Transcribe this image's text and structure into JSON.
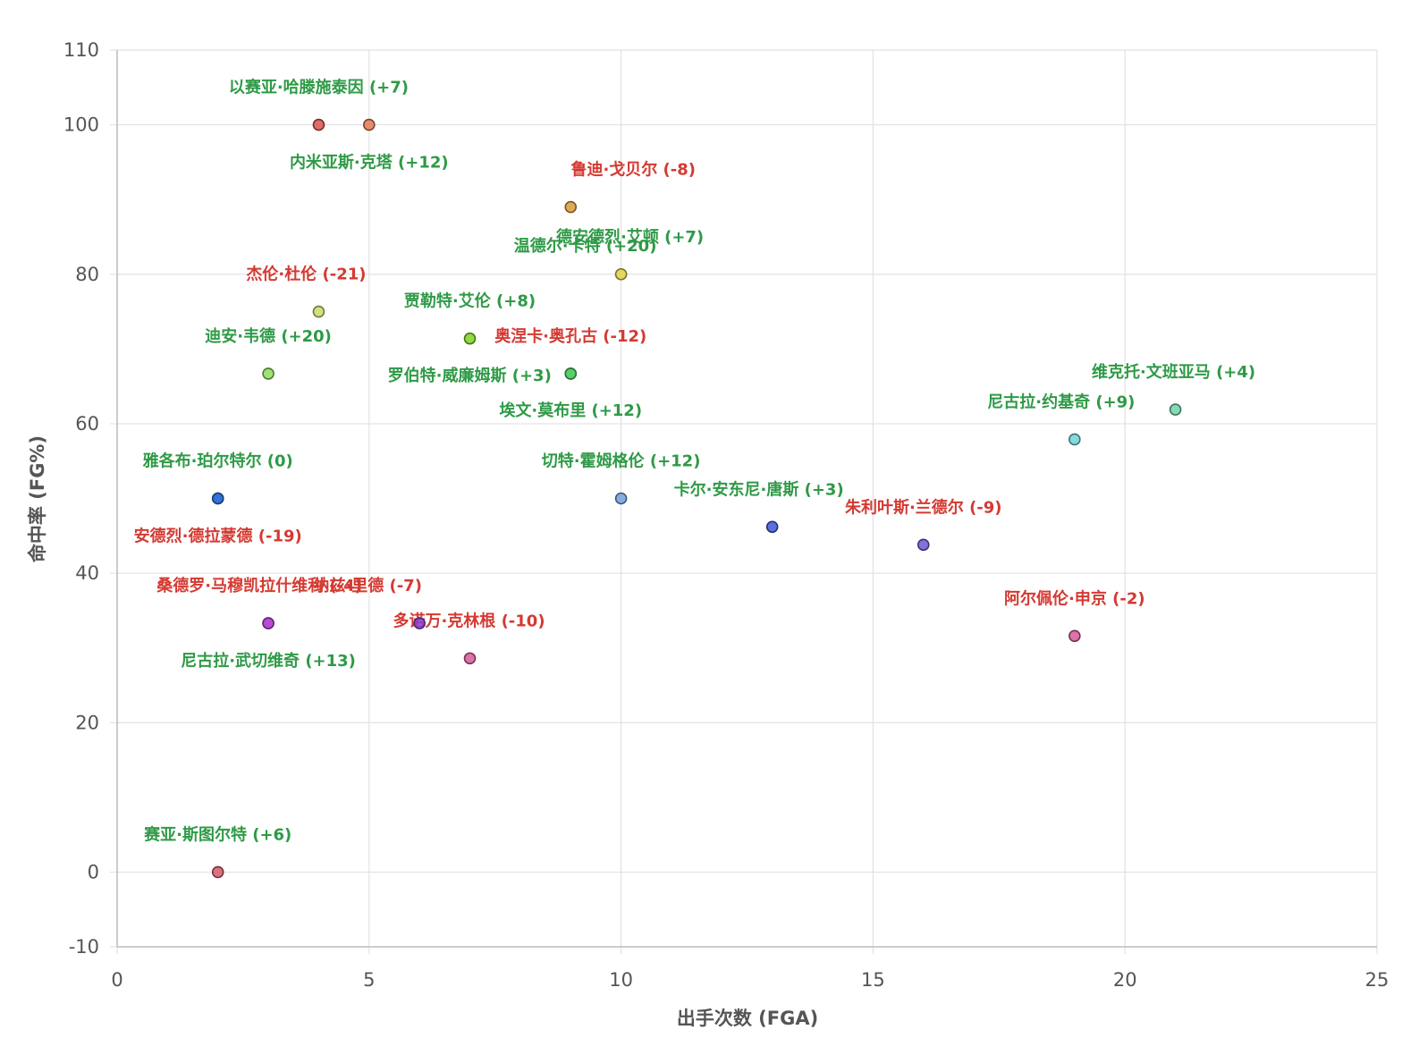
{
  "chart_data": {
    "type": "scatter",
    "xlabel": "出手次数 (FGA)",
    "ylabel": "命中率 (FG%)",
    "xlim": [
      0,
      25
    ],
    "ylim": [
      -10,
      110
    ],
    "x_ticks": [
      0,
      5,
      10,
      15,
      20,
      25
    ],
    "y_ticks": [
      -10,
      0,
      20,
      40,
      60,
      80,
      100,
      110
    ],
    "grid": true,
    "colors": {
      "positive": "#2e9a46",
      "negative": "#d43a32"
    },
    "points": [
      {
        "label": "以赛亚·哈滕施泰因 (+7)",
        "x": 4,
        "y": 100,
        "color": "#d9534f",
        "sign": "positive"
      },
      {
        "label": "内米亚斯·克塔 (+12)",
        "x": 5,
        "y": 100,
        "color": "#e07a55",
        "sign": "positive"
      },
      {
        "label": "鲁迪·戈贝尔 (-8)",
        "x": 9,
        "y": 89,
        "color": "#d99a3a",
        "sign": "negative"
      },
      {
        "label": "德安德烈·艾顿 (+7)",
        "x": 10,
        "y": 80,
        "color": "#e6d65a",
        "sign": "positive"
      },
      {
        "label": "温德尔·卡特 (+20)",
        "x": 10,
        "y": 80,
        "color": "#e6d65a",
        "sign": "positive"
      },
      {
        "label": "杰伦·杜伦 (-21)",
        "x": 4,
        "y": 75,
        "color": "#c9dc6a",
        "sign": "negative"
      },
      {
        "label": "贾勒特·艾伦 (+8)",
        "x": 7,
        "y": 71.4,
        "color": "#7ed321",
        "sign": "positive"
      },
      {
        "label": "迪安·韦德 (+20)",
        "x": 3,
        "y": 66.7,
        "color": "#8fdc5a",
        "sign": "positive"
      },
      {
        "label": "奥涅卡·奥孔古 (-12)",
        "x": 9,
        "y": 66.7,
        "color": "#55cf6a",
        "sign": "negative"
      },
      {
        "label": "罗伯特·威廉姆斯 (+3)",
        "x": 9,
        "y": 66.7,
        "color": "#55cf6a",
        "sign": "positive"
      },
      {
        "label": "埃文·莫布里 (+12)",
        "x": 9,
        "y": 66.7,
        "color": "#55cf6a",
        "sign": "positive"
      },
      {
        "label": "维克托·文班亚马 (+4)",
        "x": 21,
        "y": 61.9,
        "color": "#6ed3a8",
        "sign": "positive"
      },
      {
        "label": "尼古拉·约基奇 (+9)",
        "x": 19,
        "y": 57.9,
        "color": "#6fd3d3",
        "sign": "positive"
      },
      {
        "label": "雅各布·珀尔特尔 (0)",
        "x": 2,
        "y": 50,
        "color": "#2f6fd6",
        "sign": "positive"
      },
      {
        "label": "切特·霍姆格伦 (+12)",
        "x": 10,
        "y": 50,
        "color": "#6fa0dc",
        "sign": "positive"
      },
      {
        "label": "卡尔·安东尼·唐斯 (+3)",
        "x": 13,
        "y": 46.2,
        "color": "#3f57d6",
        "sign": "positive"
      },
      {
        "label": "朱利叶斯·兰德尔 (-9)",
        "x": 16,
        "y": 43.8,
        "color": "#6a5bd6",
        "sign": "negative"
      },
      {
        "label": "安德烈·德拉蒙德 (-19)",
        "x": 2,
        "y": 50,
        "color": "#2f6fd6",
        "sign": "negative"
      },
      {
        "label": "桑德罗·马穆凯拉什维利 (-4)",
        "x": 3,
        "y": 33.3,
        "color": "#b548d6",
        "sign": "negative"
      },
      {
        "label": "纳兹·里德 (-7)",
        "x": 6,
        "y": 33.3,
        "color": "#8a3fd6",
        "sign": "negative"
      },
      {
        "label": "多诺万·克林根 (-10)",
        "x": 7,
        "y": 28.6,
        "color": "#d65a9a",
        "sign": "negative"
      },
      {
        "label": "尼古拉·武切维奇 (+13)",
        "x": 3,
        "y": 33.3,
        "color": "#b548d6",
        "sign": "positive"
      },
      {
        "label": "阿尔佩伦·申京 (-2)",
        "x": 19,
        "y": 31.6,
        "color": "#d65a9a",
        "sign": "negative"
      },
      {
        "label": "赛亚·斯图尔特 (+6)",
        "x": 2,
        "y": 0,
        "color": "#d65a6a",
        "sign": "positive"
      }
    ]
  }
}
